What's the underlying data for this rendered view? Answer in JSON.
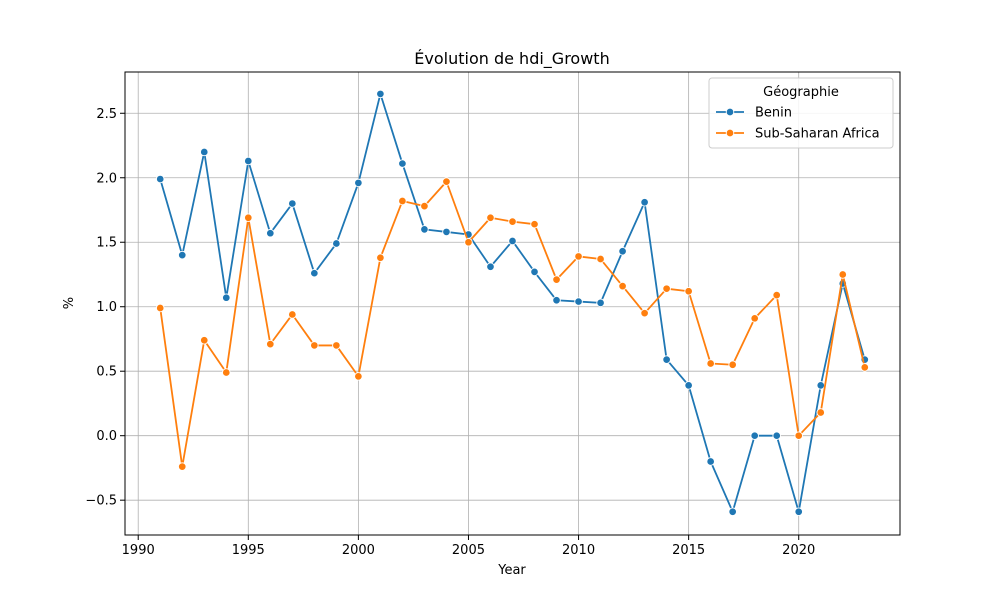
{
  "chart_data": {
    "type": "line",
    "title": "Évolution de hdi_Growth",
    "xlabel": "Year",
    "ylabel": "%",
    "xlim": [
      1989.4,
      2024.6
    ],
    "ylim": [
      -0.77,
      2.82
    ],
    "xticks": [
      1990,
      1995,
      2000,
      2005,
      2010,
      2015,
      2020
    ],
    "yticks": [
      -0.5,
      0.0,
      0.5,
      1.0,
      1.5,
      2.0,
      2.5
    ],
    "ytick_labels": [
      "−0.5",
      "0.0",
      "0.5",
      "1.0",
      "1.5",
      "2.0",
      "2.5"
    ],
    "grid": true,
    "legend": {
      "title": "Géographie",
      "placement": "top-right"
    },
    "x": [
      1991,
      1992,
      1993,
      1994,
      1995,
      1996,
      1997,
      1998,
      1999,
      2000,
      2001,
      2002,
      2003,
      2004,
      2005,
      2006,
      2007,
      2008,
      2009,
      2010,
      2011,
      2012,
      2013,
      2014,
      2015,
      2016,
      2017,
      2018,
      2019,
      2020,
      2021,
      2022,
      2023
    ],
    "series": [
      {
        "name": "Benin",
        "color": "#1f77b4",
        "values": [
          1.99,
          1.4,
          2.2,
          1.07,
          2.13,
          1.57,
          1.8,
          1.26,
          1.49,
          1.96,
          2.65,
          2.11,
          1.6,
          1.58,
          1.56,
          1.31,
          1.51,
          1.27,
          1.05,
          1.04,
          1.03,
          1.43,
          1.81,
          0.59,
          0.39,
          -0.2,
          -0.59,
          0.0,
          0.0,
          -0.59,
          0.39,
          1.18,
          0.59
        ]
      },
      {
        "name": "Sub-Saharan Africa",
        "color": "#ff7f0e",
        "values": [
          0.99,
          -0.24,
          0.74,
          0.49,
          1.69,
          0.71,
          0.94,
          0.7,
          0.7,
          0.46,
          1.38,
          1.82,
          1.78,
          1.97,
          1.5,
          1.69,
          1.66,
          1.64,
          1.21,
          1.39,
          1.37,
          1.16,
          0.95,
          1.14,
          1.12,
          0.56,
          0.55,
          0.91,
          1.09,
          0.0,
          0.18,
          1.25,
          0.53
        ]
      }
    ]
  }
}
